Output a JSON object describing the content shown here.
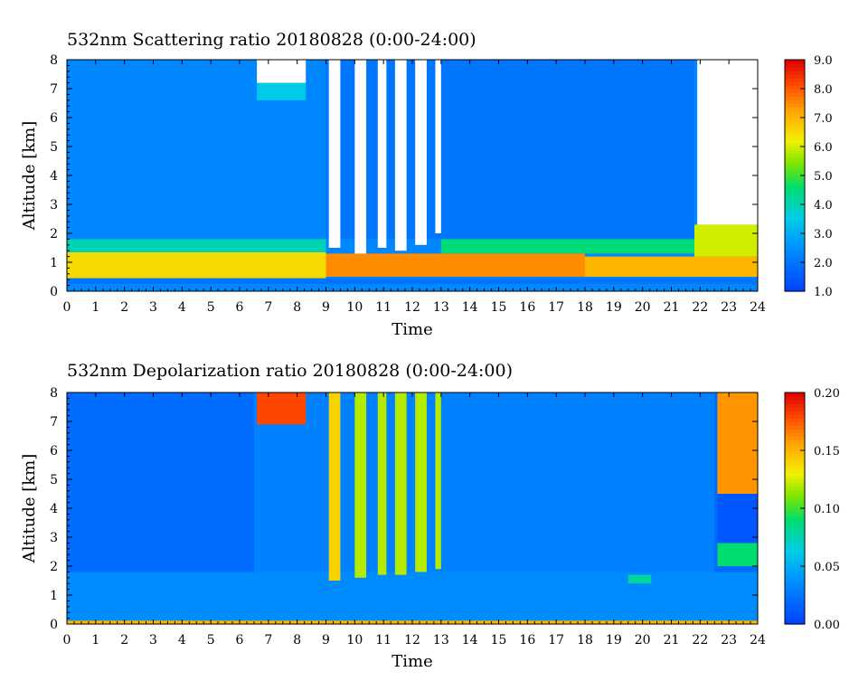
{
  "chart_data": [
    {
      "type": "heatmap",
      "title": "532nm Scattering ratio  20180828 (0:00-24:00)",
      "xlabel": "Time",
      "ylabel": "Altitude [km]",
      "xlim": [
        0,
        24
      ],
      "ylim": [
        0,
        8
      ],
      "x_ticks": [
        "0",
        "1",
        "2",
        "3",
        "4",
        "5",
        "6",
        "7",
        "8",
        "9",
        "10",
        "11",
        "12",
        "13",
        "14",
        "15",
        "16",
        "17",
        "18",
        "19",
        "20",
        "21",
        "22",
        "23",
        "24"
      ],
      "y_ticks": [
        "0",
        "1",
        "2",
        "3",
        "4",
        "5",
        "6",
        "7",
        "8"
      ],
      "colorbar": {
        "min": 1.0,
        "max": 9.0,
        "ticks": [
          "1.0",
          "2.0",
          "3.0",
          "4.0",
          "5.0",
          "6.0",
          "7.0",
          "8.0",
          "9.0"
        ]
      },
      "background_value": 2.3,
      "features": [
        {
          "kind": "band",
          "t0": 0,
          "t1": 24,
          "h0": 0.25,
          "h1": 0.45,
          "value": 2.0
        },
        {
          "kind": "band",
          "t0": 0,
          "t1": 9,
          "h0": 0.45,
          "h1": 1.35,
          "value": 6.5
        },
        {
          "kind": "band",
          "t0": 0,
          "t1": 9,
          "h0": 1.35,
          "h1": 1.8,
          "value": 4.0
        },
        {
          "kind": "band",
          "t0": 9,
          "t1": 18,
          "h0": 0.5,
          "h1": 1.3,
          "value": 7.5
        },
        {
          "kind": "band",
          "t0": 13,
          "t1": 21.8,
          "h0": 1.3,
          "h1": 2.3,
          "value": 4.5
        },
        {
          "kind": "band",
          "t0": 18,
          "t1": 24,
          "h0": 0.5,
          "h1": 1.2,
          "value": 7.0
        },
        {
          "kind": "band",
          "t0": 21.8,
          "t1": 24,
          "h0": 1.2,
          "h1": 2.3,
          "value": 6.0
        },
        {
          "kind": "band",
          "t0": 9,
          "t1": 21.8,
          "h0": 1.8,
          "h1": 8.0,
          "value": 2.0
        },
        {
          "kind": "band",
          "t0": 6.6,
          "t1": 8.3,
          "h0": 6.6,
          "h1": 7.2,
          "value": 3.5
        },
        {
          "kind": "nodata",
          "t0": 6.6,
          "t1": 8.3,
          "h0": 7.2,
          "h1": 8.0
        },
        {
          "kind": "nodata",
          "t0": 9.1,
          "t1": 9.5,
          "h0": 1.5,
          "h1": 8.0
        },
        {
          "kind": "nodata",
          "t0": 10.0,
          "t1": 10.4,
          "h0": 1.3,
          "h1": 8.0
        },
        {
          "kind": "nodata",
          "t0": 10.8,
          "t1": 11.1,
          "h0": 1.5,
          "h1": 8.0
        },
        {
          "kind": "nodata",
          "t0": 11.4,
          "t1": 11.8,
          "h0": 1.4,
          "h1": 8.0
        },
        {
          "kind": "nodata",
          "t0": 12.1,
          "t1": 12.5,
          "h0": 1.6,
          "h1": 8.0
        },
        {
          "kind": "nodata",
          "t0": 12.8,
          "t1": 13.0,
          "h0": 2.0,
          "h1": 8.0
        },
        {
          "kind": "nodata",
          "t0": 21.9,
          "t1": 24,
          "h0": 2.3,
          "h1": 8.0
        }
      ]
    },
    {
      "type": "heatmap",
      "title": "532nm Depolarization ratio  20180828 (0:00-24:00)",
      "xlabel": "Time",
      "ylabel": "Altitude [km]",
      "xlim": [
        0,
        24
      ],
      "ylim": [
        0,
        8
      ],
      "x_ticks": [
        "0",
        "1",
        "2",
        "3",
        "4",
        "5",
        "6",
        "7",
        "8",
        "9",
        "10",
        "11",
        "12",
        "13",
        "14",
        "15",
        "16",
        "17",
        "18",
        "19",
        "20",
        "21",
        "22",
        "23",
        "24"
      ],
      "y_ticks": [
        "0",
        "1",
        "2",
        "3",
        "4",
        "5",
        "6",
        "7",
        "8"
      ],
      "colorbar": {
        "min": 0.0,
        "max": 0.2,
        "ticks": [
          "0.00",
          "0.05",
          "0.10",
          "0.15",
          "0.20"
        ]
      },
      "background_value": 0.02,
      "features": [
        {
          "kind": "band",
          "t0": 0,
          "t1": 24,
          "h0": 0.0,
          "h1": 0.12,
          "value": 0.15
        },
        {
          "kind": "band",
          "t0": 0,
          "t1": 24,
          "h0": 0.12,
          "h1": 1.8,
          "value": 0.035
        },
        {
          "kind": "band",
          "t0": 6.5,
          "t1": 22.5,
          "h0": 1.8,
          "h1": 8.0,
          "value": 0.03
        },
        {
          "kind": "band",
          "t0": 6.6,
          "t1": 8.3,
          "h0": 6.9,
          "h1": 8.0,
          "value": 0.18
        },
        {
          "kind": "band",
          "t0": 9.1,
          "t1": 9.5,
          "h0": 1.5,
          "h1": 8.0,
          "value": 0.14
        },
        {
          "kind": "band",
          "t0": 10.0,
          "t1": 10.4,
          "h0": 1.6,
          "h1": 8.0,
          "value": 0.12
        },
        {
          "kind": "band",
          "t0": 10.8,
          "t1": 11.1,
          "h0": 1.7,
          "h1": 8.0,
          "value": 0.12
        },
        {
          "kind": "band",
          "t0": 11.4,
          "t1": 11.8,
          "h0": 1.7,
          "h1": 8.0,
          "value": 0.12
        },
        {
          "kind": "band",
          "t0": 12.1,
          "t1": 12.5,
          "h0": 1.8,
          "h1": 8.0,
          "value": 0.12
        },
        {
          "kind": "band",
          "t0": 12.8,
          "t1": 13.0,
          "h0": 1.9,
          "h1": 8.0,
          "value": 0.12
        },
        {
          "kind": "band",
          "t0": 19.5,
          "t1": 20.3,
          "h0": 1.4,
          "h1": 1.7,
          "value": 0.08
        },
        {
          "kind": "band",
          "t0": 22.6,
          "t1": 24,
          "h0": 4.5,
          "h1": 8.0,
          "value": 0.16
        },
        {
          "kind": "band",
          "t0": 22.6,
          "t1": 24,
          "h0": 2.0,
          "h1": 2.8,
          "value": 0.09
        },
        {
          "kind": "band",
          "t0": 22.6,
          "t1": 24,
          "h0": 2.8,
          "h1": 4.5,
          "value": 0.01
        }
      ]
    }
  ]
}
